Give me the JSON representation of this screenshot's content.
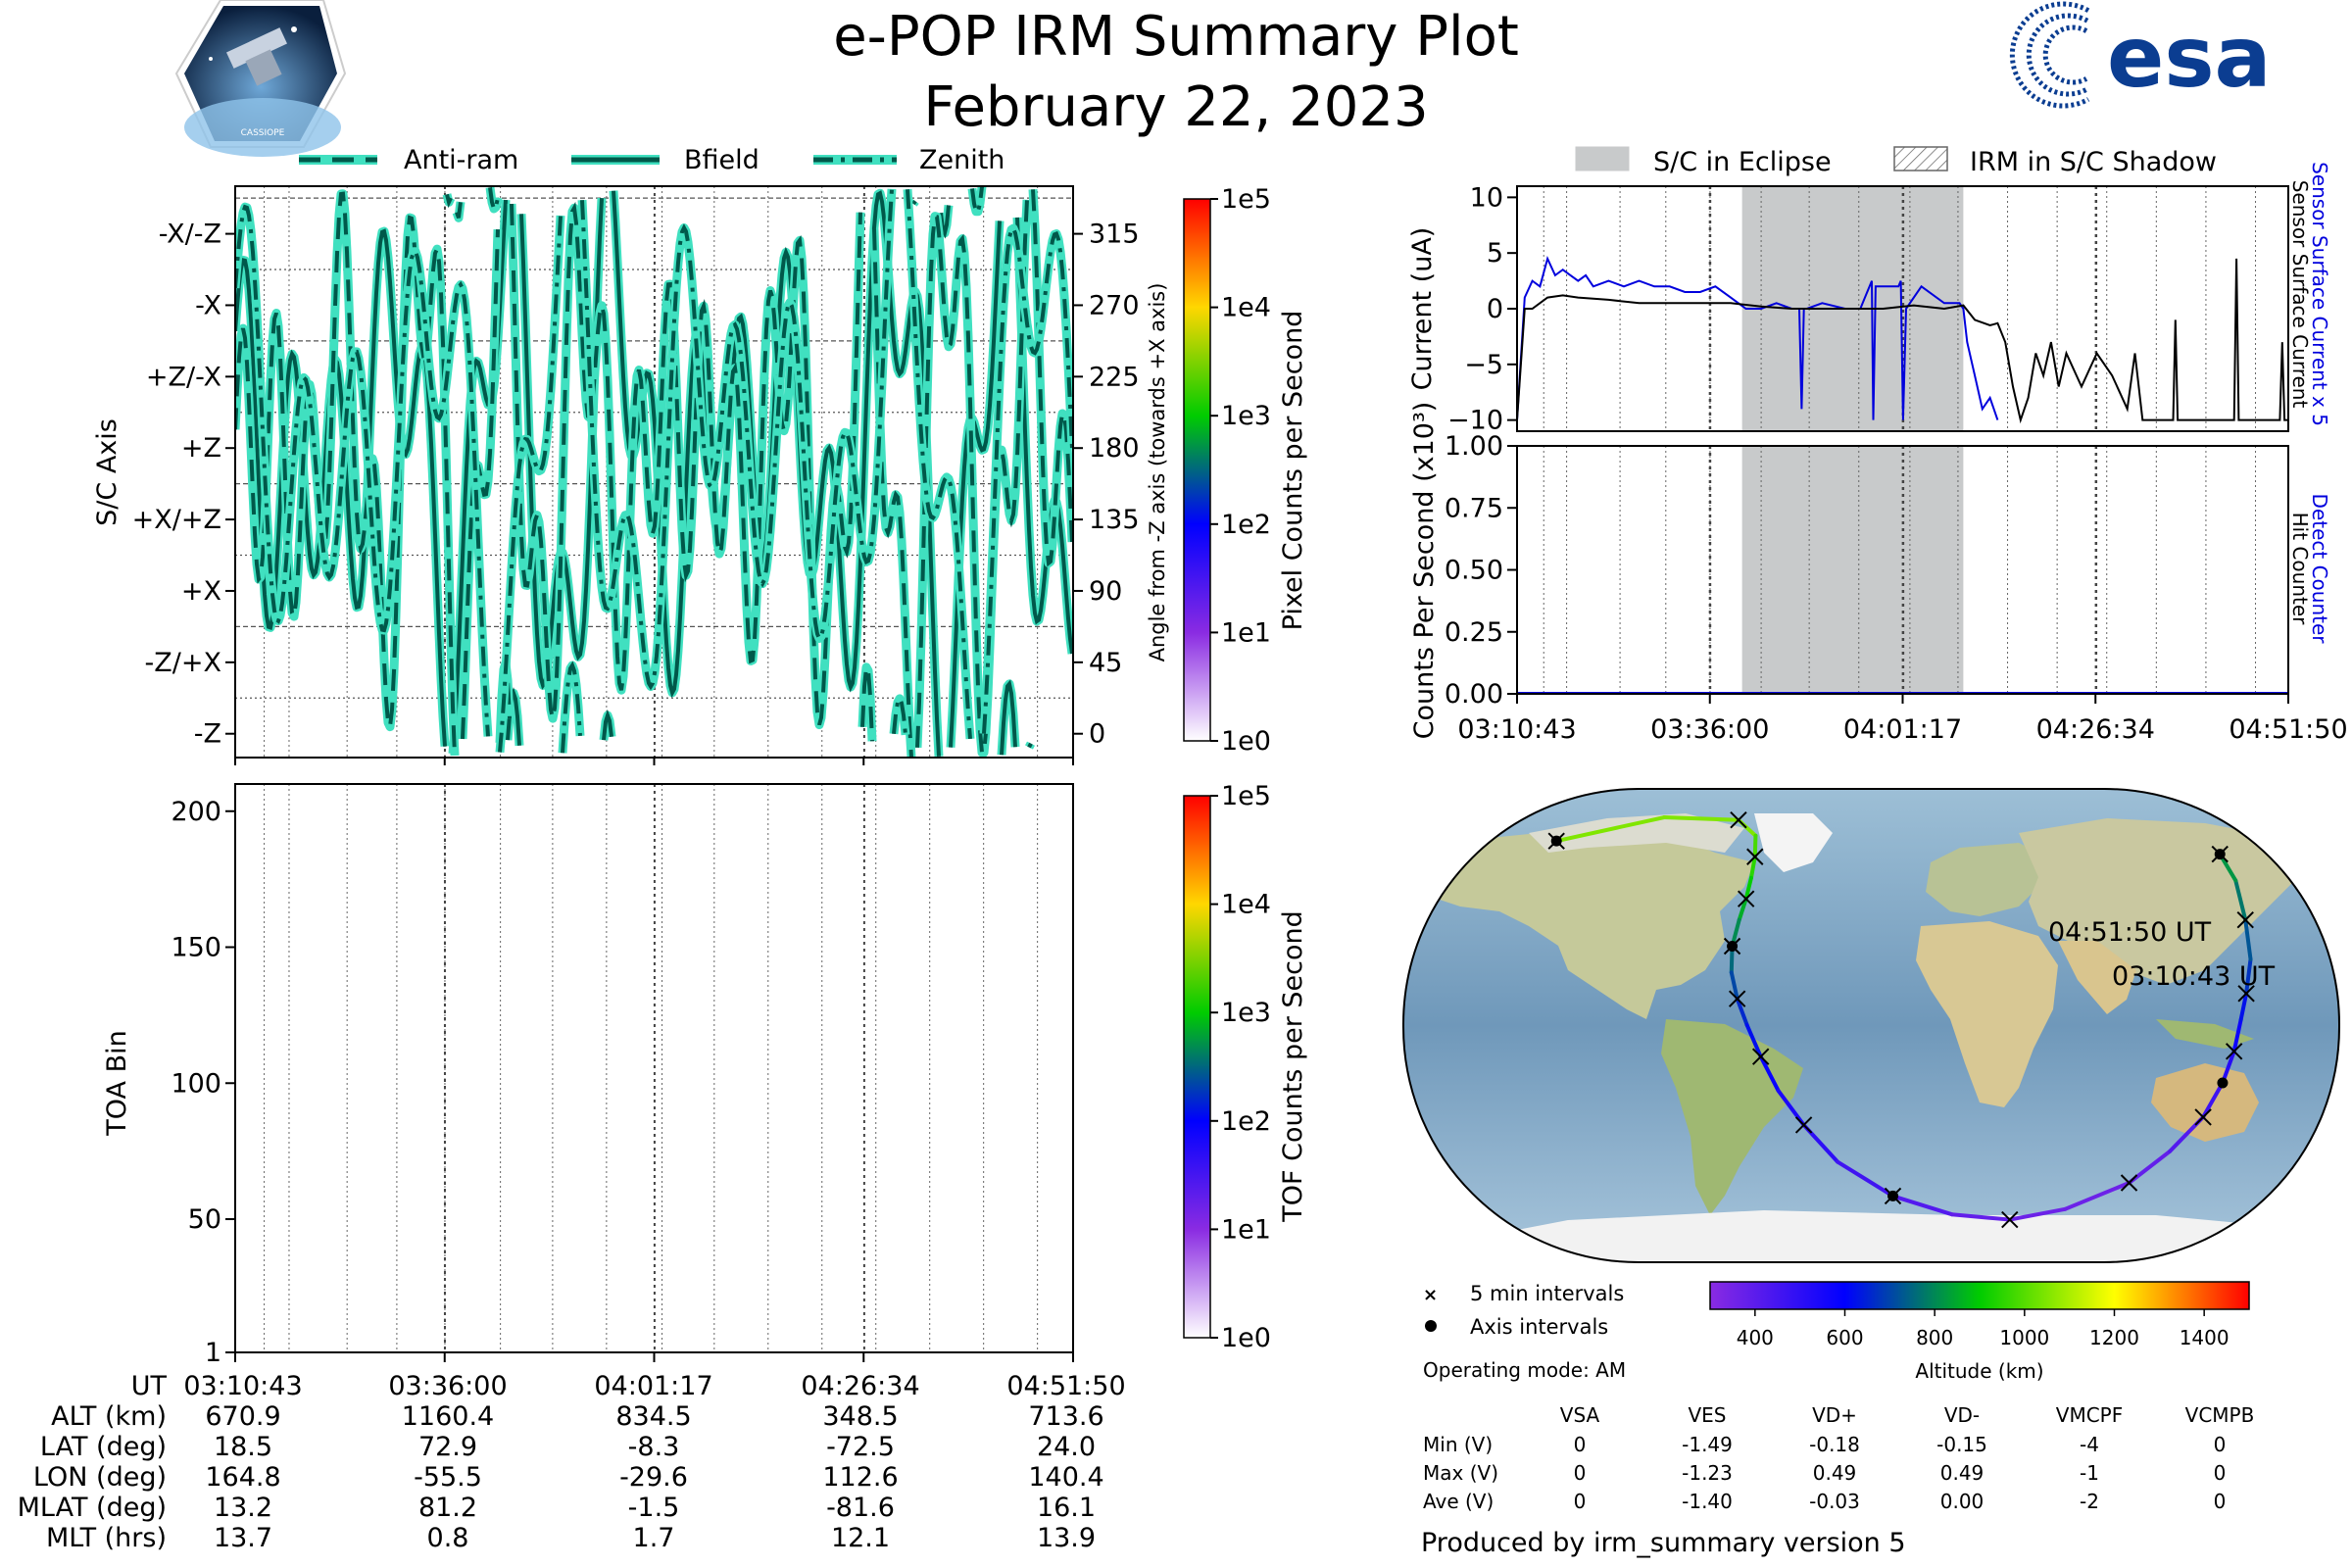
{
  "header": {
    "title": "e-POP IRM Summary Plot",
    "date": "February 22, 2023",
    "cassiope_label": "CASSIOPE",
    "esa_logo_text": "esa",
    "colors": {
      "esa_blue": "#0b3d91",
      "trace": "#40e0c0"
    }
  },
  "chart_data": [
    {
      "id": "sc_axis",
      "type": "line",
      "legend": [
        "Anti-ram",
        "Bfield",
        "Zenith"
      ],
      "ylabel": "S/C Axis",
      "y_categories": [
        "-X/-Z",
        "-X",
        "+Z/-X",
        "+Z",
        "+X/+Z",
        "+X",
        "-Z/+X",
        "-Z"
      ],
      "y2label": "Angle from -Z axis (towards +X axis)",
      "y2_ticks": [
        "315",
        "270",
        "225",
        "180",
        "135",
        "90",
        "45",
        "0"
      ],
      "ylim": [
        -15,
        345
      ],
      "x_ticks": [
        "03:10:43",
        "03:36:00",
        "04:01:17",
        "04:26:34",
        "04:51:50"
      ],
      "grid": true,
      "colorbar": {
        "label": "Pixel Counts per Second",
        "ticks": [
          "1e5",
          "1e4",
          "1e3",
          "1e2",
          "1e1",
          "1e0"
        ]
      }
    },
    {
      "id": "toa",
      "type": "heatmap",
      "ylabel": "TOA Bin",
      "y_ticks": [
        "200",
        "150",
        "100",
        "50",
        "1"
      ],
      "ylim": [
        1,
        210
      ],
      "x_ticks": [
        "03:10:43",
        "03:36:00",
        "04:01:17",
        "04:26:34",
        "04:51:50"
      ],
      "grid": true,
      "colorbar": {
        "label": "TOF Counts per Second",
        "ticks": [
          "1e5",
          "1e4",
          "1e3",
          "1e2",
          "1e1",
          "1e0"
        ]
      }
    },
    {
      "id": "current",
      "type": "line",
      "legend": [
        "S/C in Eclipse",
        "IRM in S/C Shadow"
      ],
      "ylabel": "Current (uA)",
      "y_ticks": [
        "10",
        "5",
        "0",
        "−5",
        "−10"
      ],
      "ylim": [
        -11,
        11
      ],
      "right_label_blue": "Sensor Surface Current x 5",
      "right_label_black": "Sensor Surface Current",
      "eclipse_minutes": [
        29.5,
        58.5
      ],
      "series": [
        {
          "name": "Sensor Surface Current x 5",
          "color": "#0000dd",
          "x": [
            0,
            1,
            2,
            3,
            4,
            5,
            6,
            7,
            8,
            9,
            10,
            12,
            14,
            16,
            18,
            20,
            22,
            24,
            26,
            28,
            30,
            32,
            34,
            36,
            37,
            37.3,
            37.6,
            38,
            40,
            43,
            45,
            46.5,
            46.7,
            47,
            48,
            50,
            50.3,
            50.6,
            51,
            53,
            56,
            58,
            58.5,
            59,
            60,
            61,
            62,
            63
          ],
          "y": [
            -10,
            1,
            2.5,
            2,
            4.5,
            3,
            3.5,
            3,
            2.5,
            3,
            2,
            2.5,
            2,
            2.5,
            2,
            2,
            1.5,
            1.5,
            2,
            1,
            0,
            0,
            0.5,
            0,
            0,
            -9,
            0,
            0,
            0.5,
            0,
            0,
            2.5,
            -10,
            2,
            2,
            2,
            2.5,
            -10,
            0,
            2,
            0.5,
            0.5,
            0,
            -3,
            -6,
            -9,
            -8,
            -10
          ]
        },
        {
          "name": "Sensor Surface Current",
          "color": "#000000",
          "x": [
            0,
            1,
            2,
            4,
            6,
            8,
            12,
            16,
            20,
            24,
            28,
            32,
            36,
            40,
            44,
            48,
            52,
            56,
            58.5,
            60,
            62,
            63,
            64,
            65,
            66,
            67,
            68,
            69,
            70,
            71,
            72,
            74,
            76,
            78,
            80,
            81,
            82,
            86,
            86.3,
            86.6,
            87,
            94,
            94.3,
            94.6,
            95,
            100,
            100.3,
            100.6,
            101
          ],
          "y": [
            -10,
            0,
            0,
            1,
            1.2,
            1,
            0.8,
            0.5,
            0.5,
            0.5,
            0.5,
            0.2,
            0,
            0,
            0,
            0,
            0.3,
            0,
            0.3,
            -1,
            -1.5,
            -1.3,
            -3,
            -7,
            -10,
            -8,
            -4,
            -6,
            -3,
            -7,
            -4,
            -7,
            -4,
            -6,
            -9,
            -4,
            -10,
            -10,
            -1,
            -10,
            -10,
            -10,
            4.5,
            -10,
            -10,
            -10,
            -3,
            -10,
            -10
          ]
        }
      ]
    },
    {
      "id": "counts",
      "type": "line",
      "ylabel": "Counts Per Second (x10³)",
      "y_ticks": [
        "1.00",
        "0.75",
        "0.50",
        "0.25",
        "0.00"
      ],
      "ylim": [
        0,
        1
      ],
      "right_label_blue": "Detect Counter",
      "right_label_black": "Hit Counter",
      "x_ticks": [
        "03:10:43",
        "03:36:00",
        "04:01:17",
        "04:26:34",
        "04:51:50"
      ],
      "series": [
        {
          "name": "Detect Counter",
          "color": "#0000dd",
          "x": [
            0,
            101
          ],
          "y": [
            0,
            0
          ]
        }
      ]
    },
    {
      "id": "orbit_map",
      "type": "scatter",
      "label_end": "04:51:50 UT",
      "label_start": "03:10:43 UT",
      "orbit_lon": [
        -155,
        -110,
        -70,
        -58,
        -55,
        -54,
        -54,
        -55,
        -56,
        -55,
        -52,
        -48,
        -43,
        -37,
        -28,
        -15,
        10,
        40,
        70,
        95,
        118,
        128,
        135,
        138,
        140,
        142,
        145,
        150,
        155,
        162,
        165
      ],
      "orbit_lat": [
        70,
        79,
        78,
        72,
        64,
        56,
        48,
        40,
        30,
        20,
        10,
        0,
        -12,
        -25,
        -38,
        -52,
        -65,
        -72,
        -74,
        -70,
        -60,
        -48,
        -35,
        -22,
        -10,
        2,
        12,
        25,
        40,
        55,
        65
      ],
      "orbit_alt": [
        1100,
        1000,
        1100,
        1000,
        970,
        930,
        880,
        830,
        780,
        730,
        680,
        640,
        600,
        560,
        520,
        480,
        440,
        400,
        370,
        360,
        370,
        400,
        440,
        490,
        550,
        600,
        650,
        700,
        750,
        800,
        840
      ],
      "legend_cross": "5 min intervals",
      "legend_dot": "Axis intervals",
      "operating_mode": "Operating mode: AM",
      "colorbar": {
        "label": "Altitude (km)",
        "ticks": [
          "400",
          "600",
          "800",
          "1000",
          "1200",
          "1400"
        ],
        "range": [
          300,
          1500
        ]
      }
    }
  ],
  "info_table": {
    "rows": [
      {
        "label": "UT",
        "values": [
          "03:10:43",
          "03:36:00",
          "04:01:17",
          "04:26:34",
          "04:51:50"
        ]
      },
      {
        "label": "ALT (km)",
        "values": [
          "670.9",
          "1160.4",
          "834.5",
          "348.5",
          "713.6"
        ]
      },
      {
        "label": "LAT (deg)",
        "values": [
          "18.5",
          "72.9",
          "-8.3",
          "-72.5",
          "24.0"
        ]
      },
      {
        "label": "LON (deg)",
        "values": [
          "164.8",
          "-55.5",
          "-29.6",
          "112.6",
          "140.4"
        ]
      },
      {
        "label": "MLAT (deg)",
        "values": [
          "13.2",
          "81.2",
          "-1.5",
          "-81.6",
          "16.1"
        ]
      },
      {
        "label": "MLT (hrs)",
        "values": [
          "13.7",
          "0.8",
          "1.7",
          "12.1",
          "13.9"
        ]
      }
    ]
  },
  "voltage_table": {
    "headers": [
      "VSA",
      "VES",
      "VD+",
      "VD-",
      "VMCPF",
      "VCMPB"
    ],
    "rows": [
      {
        "label": "Min (V)",
        "values": [
          "0",
          "-1.49",
          "-0.18",
          "-0.15",
          "-4",
          "0"
        ]
      },
      {
        "label": "Max (V)",
        "values": [
          "0",
          "-1.23",
          "0.49",
          "0.49",
          "-1",
          "0"
        ]
      },
      {
        "label": "Ave (V)",
        "values": [
          "0",
          "-1.40",
          "-0.03",
          "0.00",
          "-2",
          "0"
        ]
      }
    ]
  },
  "footer": {
    "produced_by": "Produced by irm_summary version 5"
  }
}
